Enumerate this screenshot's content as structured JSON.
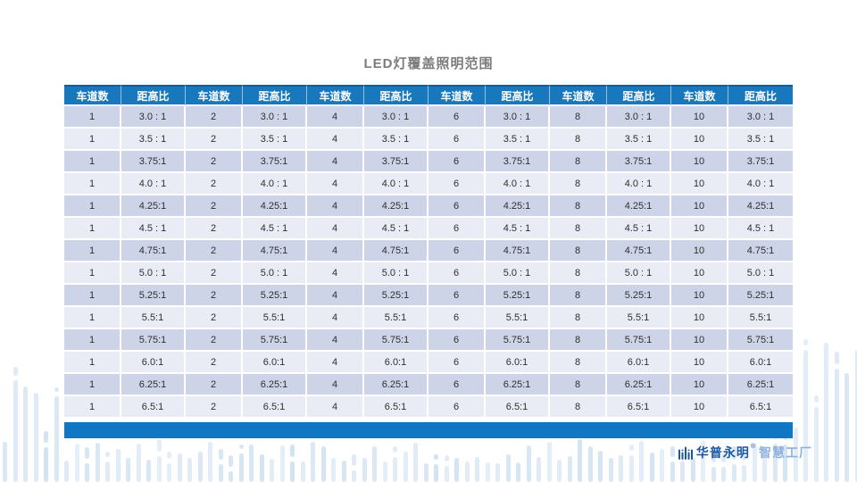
{
  "title": "LED灯覆盖照明范围",
  "table": {
    "columns": {
      "lane_label": "车道数",
      "ratio_label": "距高比"
    },
    "lane_counts": [
      "1",
      "2",
      "4",
      "6",
      "8",
      "10"
    ],
    "rows": [
      "3.0 : 1",
      "3.5 : 1",
      "3.75:1",
      "4.0 : 1",
      "4.25:1",
      "4.5 : 1",
      "4.75:1",
      "5.0 : 1",
      "5.25:1",
      "5.5:1",
      "5.75:1",
      "6.0:1",
      "6.25:1",
      "6.5:1"
    ]
  },
  "footer": {
    "brand": "华普永明",
    "mark": "®",
    "suffix": "智慧工厂"
  },
  "colors": {
    "header-blue": "#1778BE",
    "header-edge": "#0E5E9E",
    "row-dark": "#CDD4E7",
    "row-light": "#EAECF5",
    "cell-text": "#2F2F2F",
    "title-gray": "#7C7C7C",
    "footer-bar-blue": "#1077C4",
    "decor-blue": "#C7DCEF",
    "logo-dark": "#1A579F",
    "logo-light": "#8FB0D8"
  }
}
